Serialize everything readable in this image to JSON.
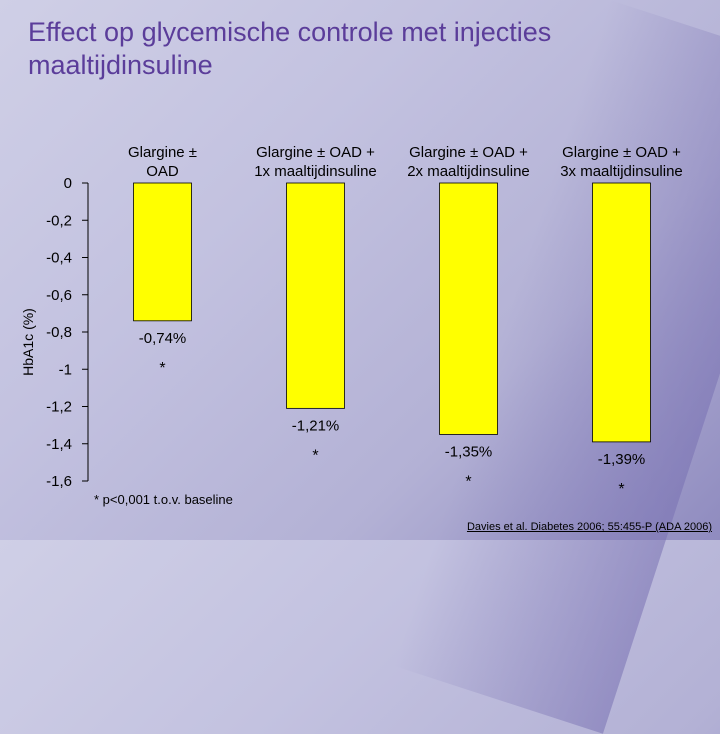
{
  "title": "Effect op glycemische controle met injecties maaltijdinsuline",
  "footnote": "* p<0,001 t.o.v. baseline",
  "source": "Davies et al. Diabetes 2006; 55:455-P (ADA 2006)",
  "colors": {
    "bar": "#ffff00",
    "title": "#5b3d9a",
    "axis": "#000000"
  },
  "chart_data": {
    "type": "bar",
    "ylabel": "HbA1c (%)",
    "ylim": [
      -1.6,
      0
    ],
    "yticks": [
      0,
      -0.2,
      -0.4,
      -0.6,
      -0.8,
      -1,
      -1.2,
      -1.4,
      -1.6
    ],
    "ytick_labels": [
      "0",
      "-0,2",
      "-0,4",
      "-0,6",
      "-0,8",
      "-1",
      "-1,2",
      "-1,4",
      "-1,6"
    ],
    "categories": [
      [
        "Glargine ±",
        "OAD"
      ],
      [
        "Glargine ± OAD +",
        "1x maaltijdinsuline"
      ],
      [
        "Glargine ± OAD +",
        "2x maaltijdinsuline"
      ],
      [
        "Glargine ± OAD +",
        "3x maaltijdinsuline"
      ]
    ],
    "values": [
      -0.74,
      -1.21,
      -1.35,
      -1.39
    ],
    "data_labels": [
      "-0,74%",
      "-1,21%",
      "-1,35%",
      "-1,39%"
    ],
    "significance": [
      "*",
      "*",
      "*",
      "*"
    ],
    "grid": false,
    "legend": "none"
  }
}
